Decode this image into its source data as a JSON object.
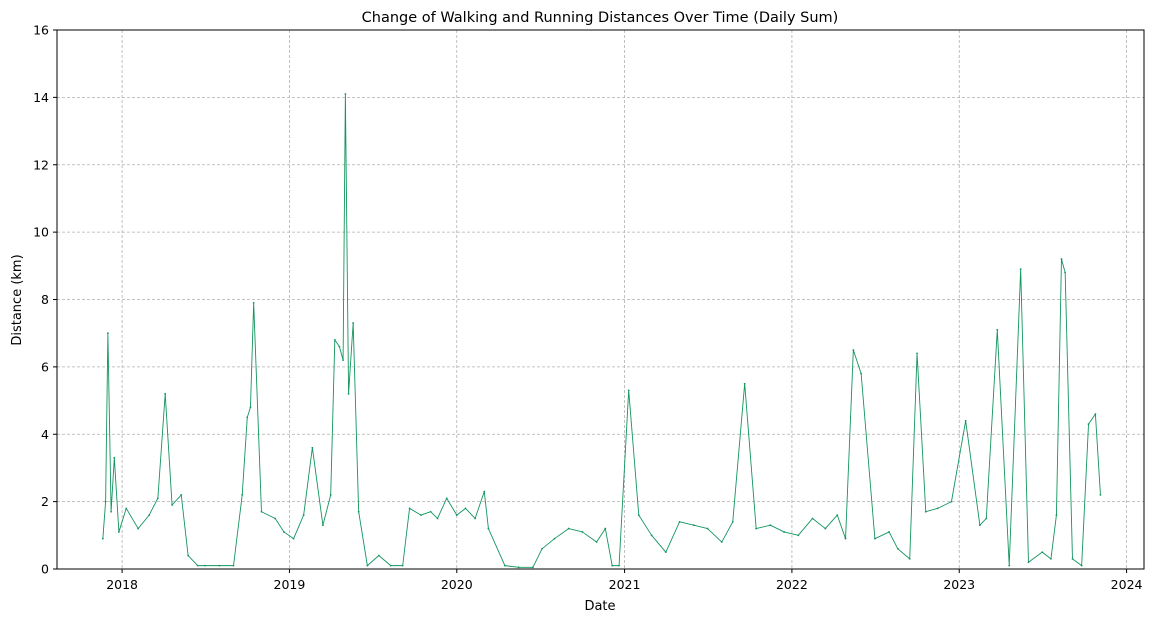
{
  "chart_data": {
    "type": "line",
    "title": "Change of Walking and Running Distances Over Time (Daily Sum)",
    "xlabel": "Date",
    "ylabel": "Distance (km)",
    "xlim": [
      "2017-08-12",
      "2024-02-08"
    ],
    "ylim": [
      0,
      16
    ],
    "x_ticks": [
      "2018-01-01",
      "2019-01-01",
      "2020-01-01",
      "2021-01-01",
      "2022-01-01",
      "2023-01-01",
      "2024-01-01"
    ],
    "x_tick_labels": [
      "2018",
      "2019",
      "2020",
      "2021",
      "2022",
      "2023",
      "2024"
    ],
    "y_ticks": [
      0,
      2,
      4,
      6,
      8,
      10,
      12,
      14,
      16
    ],
    "y_tick_labels": [
      "0",
      "2",
      "4",
      "6",
      "8",
      "10",
      "12",
      "14",
      "16"
    ],
    "grid": true,
    "line_color": "#13955f",
    "series": [
      {
        "x": [
          "2017-11-20",
          "2017-11-26",
          "2017-12-01",
          "2017-12-08",
          "2017-12-15",
          "2017-12-25",
          "2018-01-10",
          "2018-02-05",
          "2018-03-01",
          "2018-03-20",
          "2018-04-05",
          "2018-04-20",
          "2018-05-10",
          "2018-05-25",
          "2018-06-15",
          "2018-07-01",
          "2018-08-01",
          "2018-09-01",
          "2018-09-20",
          "2018-10-01",
          "2018-10-08",
          "2018-10-15",
          "2018-11-01",
          "2018-12-01",
          "2018-12-20",
          "2019-01-10",
          "2019-02-01",
          "2019-02-20",
          "2019-03-15",
          "2019-04-01",
          "2019-04-10",
          "2019-04-20",
          "2019-04-28",
          "2019-05-03",
          "2019-05-10",
          "2019-05-20",
          "2019-06-01",
          "2019-06-20",
          "2019-07-15",
          "2019-08-10",
          "2019-09-05",
          "2019-09-20",
          "2019-10-15",
          "2019-11-05",
          "2019-11-20",
          "2019-12-10",
          "2020-01-01",
          "2020-01-20",
          "2020-02-10",
          "2020-03-01",
          "2020-03-10",
          "2020-04-15",
          "2020-05-15",
          "2020-06-15",
          "2020-07-05",
          "2020-08-01",
          "2020-09-01",
          "2020-10-01",
          "2020-11-01",
          "2020-11-20",
          "2020-12-05",
          "2020-12-20",
          "2021-01-10",
          "2021-02-01",
          "2021-03-01",
          "2021-04-01",
          "2021-05-01",
          "2021-06-01",
          "2021-07-01",
          "2021-08-01",
          "2021-08-25",
          "2021-09-20",
          "2021-10-15",
          "2021-11-15",
          "2021-12-15",
          "2022-01-15",
          "2022-02-15",
          "2022-03-15",
          "2022-04-10",
          "2022-04-28",
          "2022-05-15",
          "2022-06-01",
          "2022-07-01",
          "2022-08-01",
          "2022-08-20",
          "2022-09-15",
          "2022-10-01",
          "2022-10-20",
          "2022-11-15",
          "2022-12-15",
          "2023-01-15",
          "2023-02-15",
          "2023-03-01",
          "2023-03-25",
          "2023-04-20",
          "2023-05-15",
          "2023-06-01",
          "2023-07-01",
          "2023-07-20",
          "2023-08-01",
          "2023-08-12",
          "2023-08-20",
          "2023-09-05",
          "2023-09-25",
          "2023-10-10",
          "2023-10-25",
          "2023-11-05"
        ],
        "y": [
          0.9,
          2.0,
          7.0,
          1.7,
          3.3,
          1.1,
          1.8,
          1.2,
          1.6,
          2.1,
          5.2,
          1.9,
          2.2,
          0.4,
          0.1,
          0.1,
          0.1,
          0.1,
          2.2,
          4.5,
          4.8,
          7.9,
          1.7,
          1.5,
          1.1,
          0.9,
          1.6,
          3.6,
          1.3,
          2.2,
          6.8,
          6.6,
          6.2,
          14.1,
          5.2,
          7.3,
          1.7,
          0.1,
          0.4,
          0.1,
          0.1,
          1.8,
          1.6,
          1.7,
          1.5,
          2.1,
          1.6,
          1.8,
          1.5,
          2.3,
          1.2,
          0.1,
          0.05,
          0.05,
          0.6,
          0.9,
          1.2,
          1.1,
          0.8,
          1.2,
          0.1,
          0.1,
          5.3,
          1.6,
          1.0,
          0.5,
          1.4,
          1.3,
          1.2,
          0.8,
          1.4,
          5.5,
          1.2,
          1.3,
          1.1,
          1.0,
          1.5,
          1.2,
          1.6,
          0.9,
          6.5,
          5.8,
          0.9,
          1.1,
          0.6,
          0.3,
          6.4,
          1.7,
          1.8,
          2.0,
          4.4,
          1.3,
          1.5,
          7.1,
          0.1,
          8.9,
          0.2,
          0.5,
          0.3,
          1.6,
          9.2,
          8.8,
          0.3,
          0.1,
          4.3,
          4.6,
          2.2
        ]
      }
    ]
  }
}
